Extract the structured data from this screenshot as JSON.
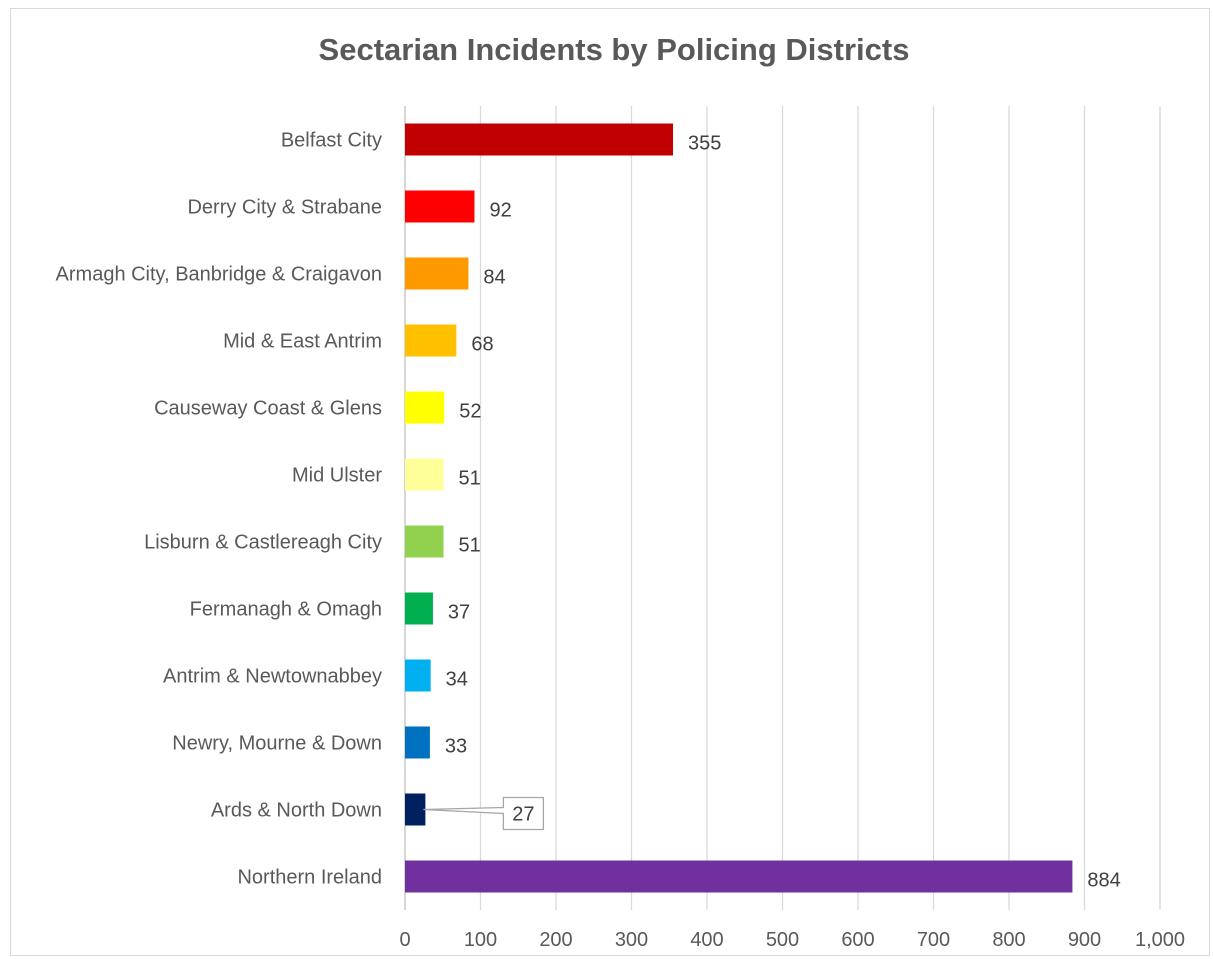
{
  "chart_data": {
    "type": "bar",
    "orientation": "horizontal",
    "title": "Sectarian Incidents by Policing Districts",
    "xlabel": "",
    "ylabel": "",
    "xlim": [
      0,
      1000
    ],
    "x_ticks": [
      0,
      100,
      200,
      300,
      400,
      500,
      600,
      700,
      800,
      900,
      1000
    ],
    "x_tick_labels": [
      "0",
      "100",
      "200",
      "300",
      "400",
      "500",
      "600",
      "700",
      "800",
      "900",
      "1,000"
    ],
    "grid": "vertical",
    "legend": "none",
    "categories": [
      "Belfast City",
      "Derry City & Strabane",
      "Armagh City, Banbridge & Craigavon",
      "Mid & East Antrim",
      "Causeway Coast & Glens",
      "Mid Ulster",
      "Lisburn & Castlereagh City",
      "Fermanagh & Omagh",
      "Antrim & Newtownabbey",
      "Newry, Mourne & Down",
      "Ards & North Down",
      "Northern Ireland"
    ],
    "values": [
      355,
      92,
      84,
      68,
      52,
      51,
      51,
      37,
      34,
      33,
      27,
      884
    ],
    "data_labels": [
      "355",
      "92",
      "84",
      "68",
      "52",
      "51",
      "51",
      "37",
      "34",
      "33",
      "27",
      "884"
    ],
    "bar_colors": [
      "#c00000",
      "#ff0000",
      "#ff9900",
      "#ffc000",
      "#ffff00",
      "#ffff99",
      "#92d050",
      "#00b050",
      "#00b0f0",
      "#0070c0",
      "#002060",
      "#7030a0"
    ],
    "callout_category": "Ards & North Down"
  }
}
